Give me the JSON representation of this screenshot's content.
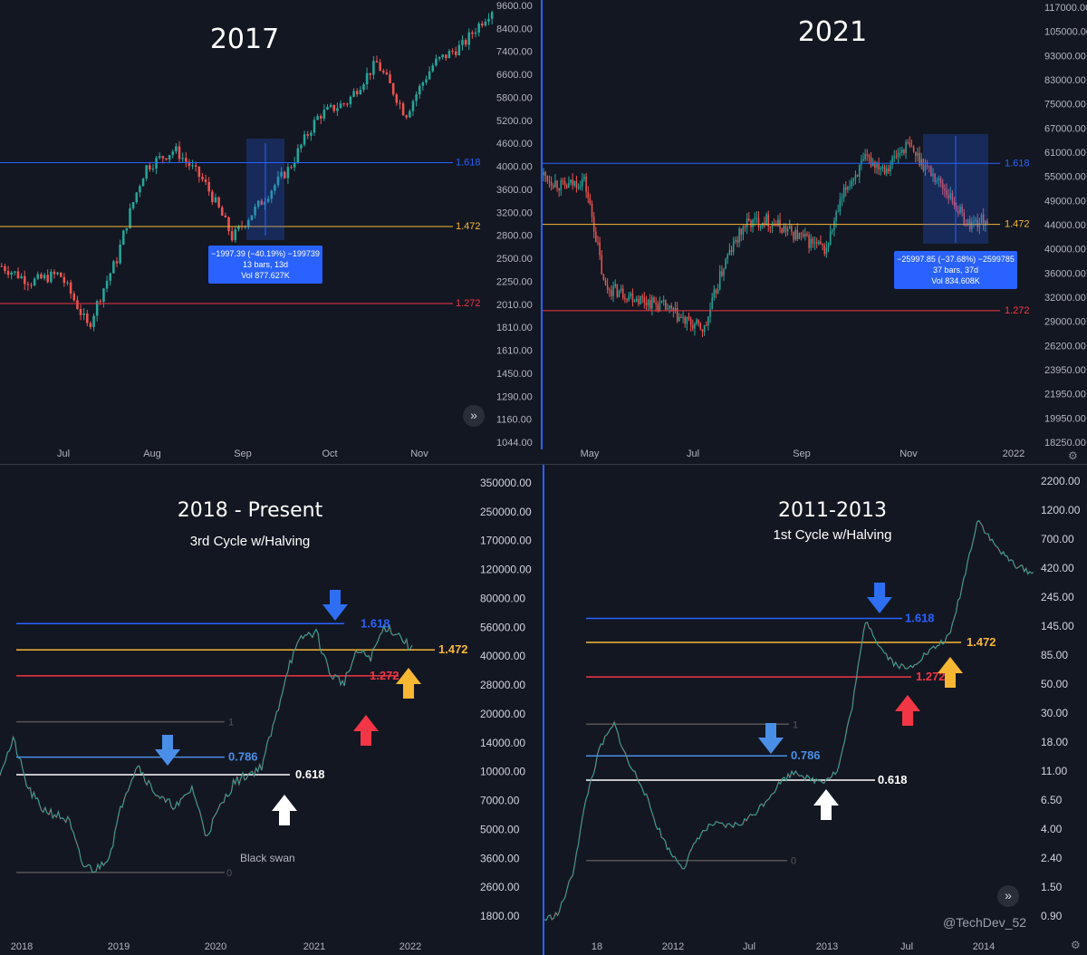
{
  "panels": [
    {
      "id": "tl",
      "title": "2017",
      "subtitle": "",
      "y_ticks": [
        "9600.00",
        "8400.00",
        "7400.00",
        "6600.00",
        "5800.00",
        "5200.00",
        "4600.00",
        "4000.00",
        "3600.00",
        "3200.00",
        "2800.00",
        "2500.00",
        "2250.00",
        "2010.00",
        "1810.00",
        "1610.00",
        "1450.00",
        "1290.00",
        "1160.00",
        "1044.00"
      ],
      "x_ticks": [
        "Jul",
        "Aug",
        "Sep",
        "Oct",
        "Nov"
      ],
      "fib_levels": [
        {
          "label": "1.618",
          "color": "#2962ff"
        },
        {
          "label": "1.472",
          "color": "#f7b733"
        },
        {
          "label": "1.272",
          "color": "#f23645"
        }
      ],
      "measure": {
        "line1": "−1997.39 (−40.19%) −199739",
        "line2": "13 bars, 13d",
        "line3": "Vol 877.627K"
      }
    },
    {
      "id": "tr",
      "title": "2021",
      "subtitle": "",
      "y_ticks": [
        "117000.00",
        "105000.00",
        "93000.00",
        "83000.00",
        "75000.00",
        "67000.00",
        "61000.00",
        "55000.00",
        "49000.00",
        "44000.00",
        "40000.00",
        "36000.00",
        "32000.00",
        "29000.00",
        "26200.00",
        "23950.00",
        "21950.00",
        "19950.00",
        "18250.00"
      ],
      "x_ticks": [
        "May",
        "Jul",
        "Sep",
        "Nov",
        "2022"
      ],
      "fib_levels": [
        {
          "label": "1.618",
          "color": "#2962ff"
        },
        {
          "label": "1.472",
          "color": "#f7b733"
        },
        {
          "label": "1.272",
          "color": "#f23645"
        }
      ],
      "measure": {
        "line1": "−25997.85 (−37.68%) −2599785",
        "line2": "37 bars, 37d",
        "line3": "Vol 834.608K"
      }
    },
    {
      "id": "bl",
      "title": "2018 - Present",
      "subtitle": "3rd Cycle w/Halving",
      "y_ticks": [
        "350000.00",
        "250000.00",
        "170000.00",
        "120000.00",
        "80000.00",
        "56000.00",
        "40000.00",
        "28000.00",
        "20000.00",
        "14000.00",
        "10000.00",
        "7000.00",
        "5000.00",
        "3600.00",
        "2600.00",
        "1800.00"
      ],
      "x_ticks": [
        "2018",
        "2019",
        "2020",
        "2021",
        "2022"
      ],
      "fib_levels": [
        {
          "label": "1.618",
          "color": "#2962ff"
        },
        {
          "label": "1.472",
          "color": "#f7b733"
        },
        {
          "label": "1.272",
          "color": "#f23645"
        },
        {
          "label": "1",
          "color": "#555555"
        },
        {
          "label": "0.786",
          "color": "#4a8fe7"
        },
        {
          "label": "0.618",
          "color": "#ffffff"
        },
        {
          "label": "0",
          "color": "#555555"
        }
      ],
      "note": "Black swan"
    },
    {
      "id": "br",
      "title": "2011-2013",
      "subtitle": "1st Cycle w/Halving",
      "y_ticks": [
        "2200.00",
        "1200.00",
        "700.00",
        "420.00",
        "245.00",
        "145.00",
        "85.00",
        "50.00",
        "30.00",
        "18.00",
        "11.00",
        "6.50",
        "4.00",
        "2.40",
        "1.50",
        "0.90"
      ],
      "x_ticks": [
        "18",
        "2012",
        "Jul",
        "2013",
        "Jul",
        "2014"
      ],
      "fib_levels": [
        {
          "label": "1.618",
          "color": "#2962ff"
        },
        {
          "label": "1.472",
          "color": "#f7b733"
        },
        {
          "label": "1.272",
          "color": "#f23645"
        },
        {
          "label": "1",
          "color": "#555555"
        },
        {
          "label": "0.786",
          "color": "#4a8fe7"
        },
        {
          "label": "0.618",
          "color": "#ffffff"
        },
        {
          "label": "0",
          "color": "#555555"
        }
      ],
      "watermark": "@TechDev_52"
    }
  ],
  "chart_data": [
    {
      "type": "candlestick",
      "title": "2017",
      "x_range": [
        "2017-06",
        "2017-11"
      ],
      "series": [
        {
          "approx_close": [
            2600,
            2400,
            2500,
            1900,
            2700,
            4300,
            4700,
            4000,
            3000,
            3600,
            4300,
            5600,
            6000,
            7300,
            5600,
            7300,
            8000,
            9600
          ]
        }
      ],
      "fib": {
        "1.618": 4400,
        "1.472": 3180,
        "1.272": 2150
      },
      "measure": {
        "change": -1997.39,
        "pct": -40.19,
        "bars": 13
      }
    },
    {
      "type": "candlestick",
      "title": "2021",
      "x_range": [
        "2021-04",
        "2021-12"
      ],
      "series": [
        {
          "approx_close": [
            58000,
            55000,
            57000,
            36000,
            35000,
            34000,
            33000,
            31000,
            30000,
            40000,
            47000,
            48000,
            46000,
            44000,
            42000,
            55000,
            62000,
            60000,
            66000,
            60000,
            54000,
            47000,
            48000
          ]
        }
      ],
      "fib": {
        "1.618": 61000,
        "1.472": 47000,
        "1.272": 32500
      },
      "measure": {
        "change": -25997.85,
        "pct": -37.68,
        "bars": 37
      }
    },
    {
      "type": "line",
      "title": "2018 - Present",
      "subtitle": "3rd Cycle w/Halving",
      "yscale": "log",
      "series": [
        {
          "approx_close": [
            11000,
            16000,
            9000,
            7000,
            6500,
            6000,
            3500,
            3300,
            4000,
            8000,
            12000,
            9000,
            7500,
            7200,
            9000,
            5000,
            7000,
            9500,
            10500,
            11500,
            20000,
            40000,
            56000,
            60000,
            36000,
            32000,
            47000,
            44000,
            64000,
            58000,
            48000
          ]
        }
      ],
      "fib": {
        "1.618": 66000,
        "1.472": 48000,
        "1.272": 35000,
        "1": 20000,
        "0.786": 13000,
        "0.618": 10500,
        "0": 3200
      }
    },
    {
      "type": "line",
      "title": "2011-2013",
      "subtitle": "1st Cycle w/Halving",
      "yscale": "log",
      "series": [
        {
          "approx_close": [
            0.9,
            1,
            2,
            8,
            20,
            30,
            15,
            10,
            5,
            3,
            2.3,
            4,
            5,
            4.8,
            5,
            6,
            8,
            11,
            13,
            11,
            11,
            13,
            40,
            200,
            120,
            90,
            80,
            100,
            120,
            145,
            400,
            1200,
            800,
            600,
            500,
            450
          ]
        }
      ],
      "fib": {
        "1.618": 200,
        "1.472": 130,
        "1.272": 70,
        "1": 30,
        "0.786": 17,
        "0.618": 11,
        "0": 2.6
      }
    }
  ]
}
